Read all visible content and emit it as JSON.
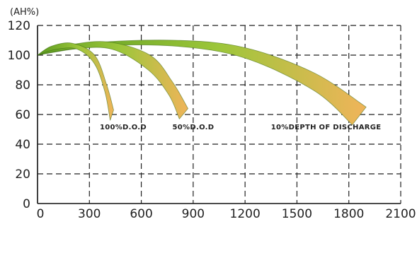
{
  "chart_data": {
    "type": "area",
    "title": "",
    "xlabel": "",
    "ylabel": "(AH%)",
    "xlim": [
      0,
      2100
    ],
    "ylim": [
      0,
      120
    ],
    "x_ticks": [
      "0",
      "300",
      "600",
      "900",
      "1200",
      "1500",
      "1800",
      "2100"
    ],
    "y_ticks": [
      "0",
      "20",
      "40",
      "60",
      "80",
      "100",
      "120"
    ],
    "grid": true,
    "series": [
      {
        "name": "100%D.O.D",
        "label_anchor": {
          "x": 360,
          "y": 52
        },
        "upper": [
          [
            0,
            100
          ],
          [
            80,
            106
          ],
          [
            200,
            108
          ],
          [
            330,
            100
          ],
          [
            400,
            80
          ],
          [
            440,
            63
          ]
        ],
        "lower": [
          [
            0,
            100
          ],
          [
            110,
            104
          ],
          [
            230,
            104
          ],
          [
            330,
            94
          ],
          [
            390,
            75
          ],
          [
            420,
            56
          ]
        ]
      },
      {
        "name": "50%D.O.D",
        "label_anchor": {
          "x": 780,
          "y": 52
        },
        "upper": [
          [
            0,
            100
          ],
          [
            150,
            106
          ],
          [
            400,
            109
          ],
          [
            650,
            100
          ],
          [
            780,
            82
          ],
          [
            870,
            64
          ]
        ],
        "lower": [
          [
            0,
            100
          ],
          [
            200,
            104
          ],
          [
            430,
            104
          ],
          [
            640,
            90
          ],
          [
            760,
            73
          ],
          [
            820,
            57
          ]
        ]
      },
      {
        "name": "10%DEPTH OF DISCHARGE",
        "label_anchor": {
          "x": 1350,
          "y": 52
        },
        "upper": [
          [
            0,
            100
          ],
          [
            300,
            108
          ],
          [
            800,
            110
          ],
          [
            1200,
            105
          ],
          [
            1600,
            88
          ],
          [
            1900,
            65
          ]
        ],
        "lower": [
          [
            0,
            100
          ],
          [
            350,
            106
          ],
          [
            800,
            106
          ],
          [
            1200,
            98
          ],
          [
            1600,
            76
          ],
          [
            1820,
            53
          ]
        ]
      }
    ],
    "colors": {
      "fill_start": "#5a9a1e",
      "fill_mid": "#9cc63a",
      "fill_end": "#f0b45a",
      "edge": "#3d6b16"
    }
  }
}
